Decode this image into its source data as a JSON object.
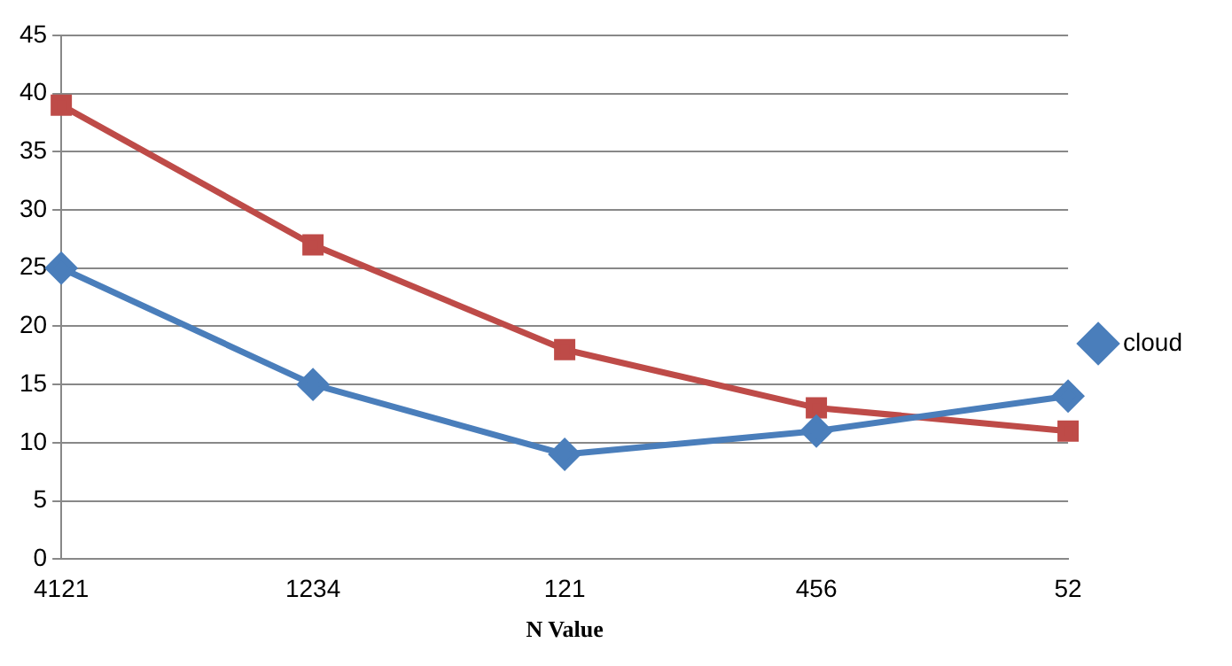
{
  "chart_data": {
    "type": "line",
    "xlabel": "N Value",
    "categories": [
      "4121",
      "1234",
      "121",
      "456",
      "52"
    ],
    "series": [
      {
        "name": "cloud",
        "color": "#4a7ebb",
        "marker": "diamond",
        "values": [
          25,
          15,
          9,
          11,
          14
        ]
      },
      {
        "color": "#be4b48",
        "marker": "square",
        "values": [
          39,
          27,
          18,
          13,
          11
        ]
      }
    ],
    "ylim": [
      0,
      45
    ],
    "yticks": [
      0,
      5,
      10,
      15,
      20,
      25,
      30,
      35,
      40,
      45
    ],
    "grid": "y",
    "legend": "right",
    "line_style": "solid"
  }
}
